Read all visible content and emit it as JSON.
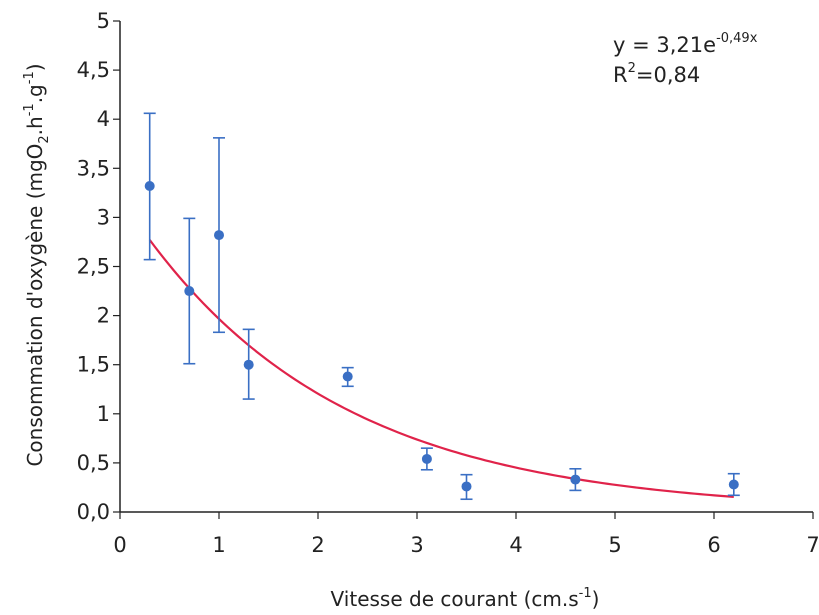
{
  "chart_data": {
    "type": "scatter",
    "xlabel": "Vitesse de courant (cm.s",
    "xlabel_sup": "-1",
    "xlabel_end": ")",
    "ylabel": {
      "p1": "Consommation d'oxygène (mgO",
      "sub1": "2",
      "p2": ".h",
      "sup1": "-1",
      "p3": ".g",
      "sup2": "-1",
      "p4": ")"
    },
    "xlim": [
      0,
      7
    ],
    "ylim": [
      0,
      5
    ],
    "x_ticks": [
      0,
      1,
      2,
      3,
      4,
      5,
      6,
      7
    ],
    "x_tick_labels": [
      "0",
      "1",
      "2",
      "3",
      "4",
      "5",
      "6",
      "7"
    ],
    "y_ticks": [
      0,
      0.5,
      1,
      1.5,
      2,
      2.5,
      3,
      3.5,
      4,
      4.5,
      5
    ],
    "y_tick_labels": [
      "0,0",
      "0,5",
      "1",
      "1,5",
      "2",
      "2,5",
      "3",
      "3,5",
      "4",
      "4,5",
      "5"
    ],
    "points": [
      {
        "x": 0.3,
        "y": 3.32,
        "err_low": 2.57,
        "err_high": 4.06
      },
      {
        "x": 0.7,
        "y": 2.25,
        "err_low": 1.51,
        "err_high": 2.99
      },
      {
        "x": 1.0,
        "y": 2.82,
        "err_low": 1.83,
        "err_high": 3.81
      },
      {
        "x": 1.3,
        "y": 1.5,
        "err_low": 1.15,
        "err_high": 1.86
      },
      {
        "x": 2.3,
        "y": 1.38,
        "err_low": 1.28,
        "err_high": 1.47
      },
      {
        "x": 3.1,
        "y": 0.54,
        "err_low": 0.43,
        "err_high": 0.65
      },
      {
        "x": 3.5,
        "y": 0.26,
        "err_low": 0.13,
        "err_high": 0.38
      },
      {
        "x": 4.6,
        "y": 0.33,
        "err_low": 0.22,
        "err_high": 0.44
      },
      {
        "x": 6.2,
        "y": 0.28,
        "err_low": 0.17,
        "err_high": 0.39
      }
    ],
    "fit": {
      "a": 3.21,
      "b": -0.49,
      "x_range": [
        0.3,
        6.2
      ],
      "equation_main": "y = 3,21e",
      "equation_exp": "-0,49x",
      "r2_label": "R",
      "r2_sup": "2",
      "r2_value": "=0,84"
    },
    "colors": {
      "points": "#3a6fc4",
      "error_bars": "#3a6fc4",
      "fit_line": "#e0234a",
      "axis": "#222222"
    },
    "grid": false
  }
}
